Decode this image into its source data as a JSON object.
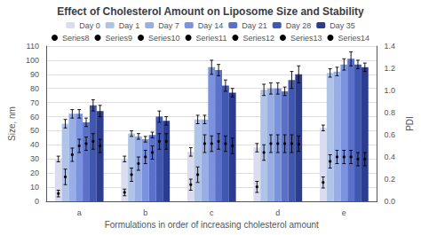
{
  "chart_data": {
    "type": "bar",
    "title": "Effect of Cholesterol Amount on Liposome Size and Stability",
    "xlabel": "Formulations in order of increasing cholesterol amount",
    "ylabel": "Size, nm",
    "y2label": "PDI",
    "categories": [
      "a",
      "b",
      "c",
      "d",
      "e"
    ],
    "series": [
      {
        "name": "Day 0",
        "color": "#dcdcf0",
        "values": [
          30,
          30,
          35,
          38,
          52
        ],
        "errors": [
          2,
          2,
          3,
          3,
          2
        ]
      },
      {
        "name": "Day 1",
        "color": "#b0c4e8",
        "values": [
          55,
          48,
          58,
          79,
          91
        ],
        "errors": [
          3,
          2,
          3,
          4,
          3
        ]
      },
      {
        "name": "Day 7",
        "color": "#9aaee6",
        "values": [
          62,
          46,
          58,
          80,
          92
        ],
        "errors": [
          3,
          2,
          3,
          4,
          3
        ]
      },
      {
        "name": "Day 14",
        "color": "#7b92de",
        "values": [
          62,
          44,
          95,
          80,
          97
        ],
        "errors": [
          3,
          2,
          5,
          4,
          4
        ]
      },
      {
        "name": "Day 21",
        "color": "#5b70c8",
        "values": [
          56,
          47,
          93,
          78,
          101
        ],
        "errors": [
          3,
          2,
          4,
          3,
          5
        ]
      },
      {
        "name": "Day 28",
        "color": "#4158b0",
        "values": [
          68,
          60,
          82,
          86,
          97
        ],
        "errors": [
          4,
          4,
          4,
          6,
          3
        ]
      },
      {
        "name": "Day 35",
        "color": "#2c3d90",
        "values": [
          64,
          57,
          77,
          90,
          95
        ],
        "errors": [
          4,
          3,
          3,
          6,
          3
        ]
      },
      {
        "name": "Series8",
        "type": "scatter",
        "axis": "y2",
        "color": "#000000",
        "marker": "circle",
        "values": [
          0.07,
          0.08,
          0.15,
          0.13,
          0.17
        ],
        "errors": [
          0.03,
          0.03,
          0.05,
          0.05,
          0.05
        ]
      },
      {
        "name": "Series9",
        "type": "scatter",
        "axis": "y2",
        "color": "#000000",
        "marker": "circle",
        "values": [
          0.22,
          0.24,
          0.24,
          0.44,
          0.36
        ],
        "errors": [
          0.07,
          0.06,
          0.07,
          0.07,
          0.06
        ]
      },
      {
        "name": "Series10",
        "type": "scatter",
        "axis": "y2",
        "color": "#000000",
        "marker": "circle",
        "values": [
          0.42,
          0.34,
          0.52,
          0.52,
          0.4
        ],
        "errors": [
          0.06,
          0.06,
          0.08,
          0.08,
          0.06
        ]
      },
      {
        "name": "Series11",
        "type": "scatter",
        "axis": "y2",
        "color": "#000000",
        "marker": "circle",
        "values": [
          0.5,
          0.4,
          0.52,
          0.52,
          0.4
        ],
        "errors": [
          0.06,
          0.06,
          0.07,
          0.08,
          0.06
        ]
      },
      {
        "name": "Series12",
        "type": "scatter",
        "axis": "y2",
        "color": "#000000",
        "marker": "circle",
        "values": [
          0.52,
          0.44,
          0.54,
          0.52,
          0.4
        ],
        "errors": [
          0.06,
          0.06,
          0.07,
          0.08,
          0.06
        ]
      },
      {
        "name": "Series13",
        "type": "scatter",
        "axis": "y2",
        "color": "#000000",
        "marker": "circle",
        "values": [
          0.54,
          0.54,
          0.52,
          0.52,
          0.38
        ],
        "errors": [
          0.07,
          0.07,
          0.07,
          0.08,
          0.06
        ]
      },
      {
        "name": "Series14",
        "type": "scatter",
        "axis": "y2",
        "color": "#000000",
        "marker": "circle",
        "values": [
          0.5,
          0.54,
          0.5,
          0.52,
          0.38
        ],
        "errors": [
          0.06,
          0.07,
          0.07,
          0.07,
          0.06
        ]
      }
    ],
    "ylim": [
      0,
      110
    ],
    "yticks": [
      0,
      10,
      20,
      30,
      40,
      50,
      60,
      70,
      80,
      90,
      100,
      110
    ],
    "y2lim": [
      0,
      1.4
    ],
    "y2ticks": [
      {
        "value": 0,
        "label": "0.0"
      },
      0.2,
      0.4,
      0.6,
      0.8,
      {
        "value": 1.0,
        "label": "1.0"
      },
      1.2,
      1.4
    ],
    "grid": true,
    "legend": "top"
  }
}
